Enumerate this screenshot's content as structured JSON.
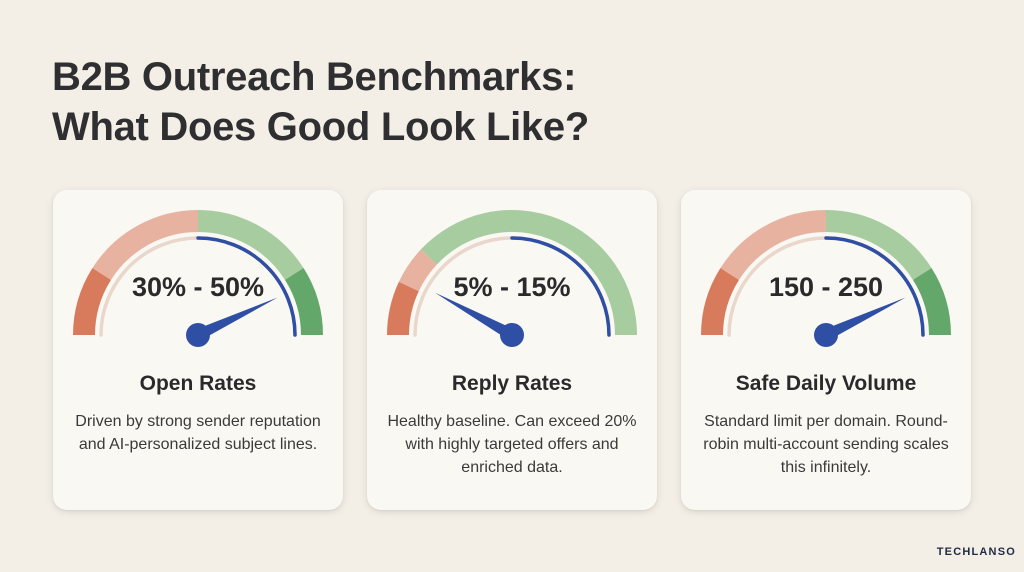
{
  "title": {
    "line1": "B2B Outreach Benchmarks:",
    "line2": "What Does Good Look Like?"
  },
  "colors": {
    "red": "#d87b5c",
    "salmon": "#e8b2a0",
    "light_green": "#a6cc9f",
    "green": "#63a86a",
    "needle": "#2e4fa3"
  },
  "cards": [
    {
      "value": "30% - 50%",
      "title": "Open Rates",
      "description": "Driven by strong sender reputation and AI-personalized subject lines.",
      "gauge_level": 0.86
    },
    {
      "value": "5% - 15%",
      "title": "Reply Rates",
      "description": "Healthy baseline. Can exceed 20% with highly targeted offers and enriched data.",
      "gauge_level": 0.16
    },
    {
      "value": "150 - 250",
      "title": "Safe Daily Volume",
      "description": "Standard limit per domain. Round-robin multi-account sending scales this infinitely.",
      "gauge_level": 0.86
    }
  ],
  "logo_text": "TECHLANSO"
}
